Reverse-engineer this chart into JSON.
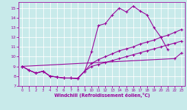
{
  "xlabel": "Windchill (Refroidissement éolien,°C)",
  "xlim": [
    -0.5,
    23.5
  ],
  "ylim": [
    7,
    15.6
  ],
  "yticks": [
    7,
    8,
    9,
    10,
    11,
    12,
    13,
    14,
    15
  ],
  "xticks": [
    0,
    1,
    2,
    3,
    4,
    5,
    6,
    7,
    8,
    9,
    10,
    11,
    12,
    13,
    14,
    15,
    16,
    17,
    18,
    19,
    20,
    21,
    22,
    23
  ],
  "bg_color": "#c8eaea",
  "line_color": "#990099",
  "grid_color": "#ffffff",
  "line1_x": [
    0,
    1,
    2,
    3,
    4,
    5,
    6,
    7,
    8,
    9,
    10,
    11,
    12,
    13,
    14,
    15,
    16,
    17,
    18,
    19,
    20,
    21
  ],
  "line1_y": [
    9.0,
    8.6,
    8.3,
    8.5,
    8.0,
    7.9,
    7.8,
    7.8,
    7.75,
    8.5,
    10.5,
    13.2,
    13.4,
    14.3,
    15.0,
    14.6,
    15.2,
    14.7,
    14.3,
    13.0,
    12.0,
    10.7
  ],
  "line2_x": [
    0,
    1,
    2,
    3,
    4,
    5,
    6,
    7,
    8,
    9,
    10,
    11,
    12,
    13,
    14,
    15,
    16,
    17,
    18,
    19,
    20,
    21,
    22,
    23
  ],
  "line2_y": [
    9.0,
    8.6,
    8.3,
    8.5,
    8.0,
    7.9,
    7.8,
    7.8,
    7.75,
    8.5,
    9.3,
    9.7,
    10.0,
    10.3,
    10.6,
    10.8,
    11.0,
    11.3,
    11.5,
    11.7,
    12.0,
    12.2,
    12.5,
    12.8
  ],
  "line3_x": [
    0,
    1,
    2,
    3,
    4,
    5,
    6,
    7,
    8,
    9,
    10,
    11,
    12,
    13,
    14,
    15,
    16,
    17,
    18,
    19,
    20,
    21,
    22,
    23
  ],
  "line3_y": [
    9.0,
    8.6,
    8.3,
    8.5,
    8.0,
    7.9,
    7.8,
    7.8,
    7.75,
    8.5,
    9.0,
    9.2,
    9.4,
    9.6,
    9.8,
    10.0,
    10.2,
    10.4,
    10.6,
    10.8,
    11.0,
    11.2,
    11.4,
    11.6
  ],
  "line4_x": [
    0,
    22,
    23
  ],
  "line4_y": [
    9.0,
    9.8,
    10.4
  ]
}
